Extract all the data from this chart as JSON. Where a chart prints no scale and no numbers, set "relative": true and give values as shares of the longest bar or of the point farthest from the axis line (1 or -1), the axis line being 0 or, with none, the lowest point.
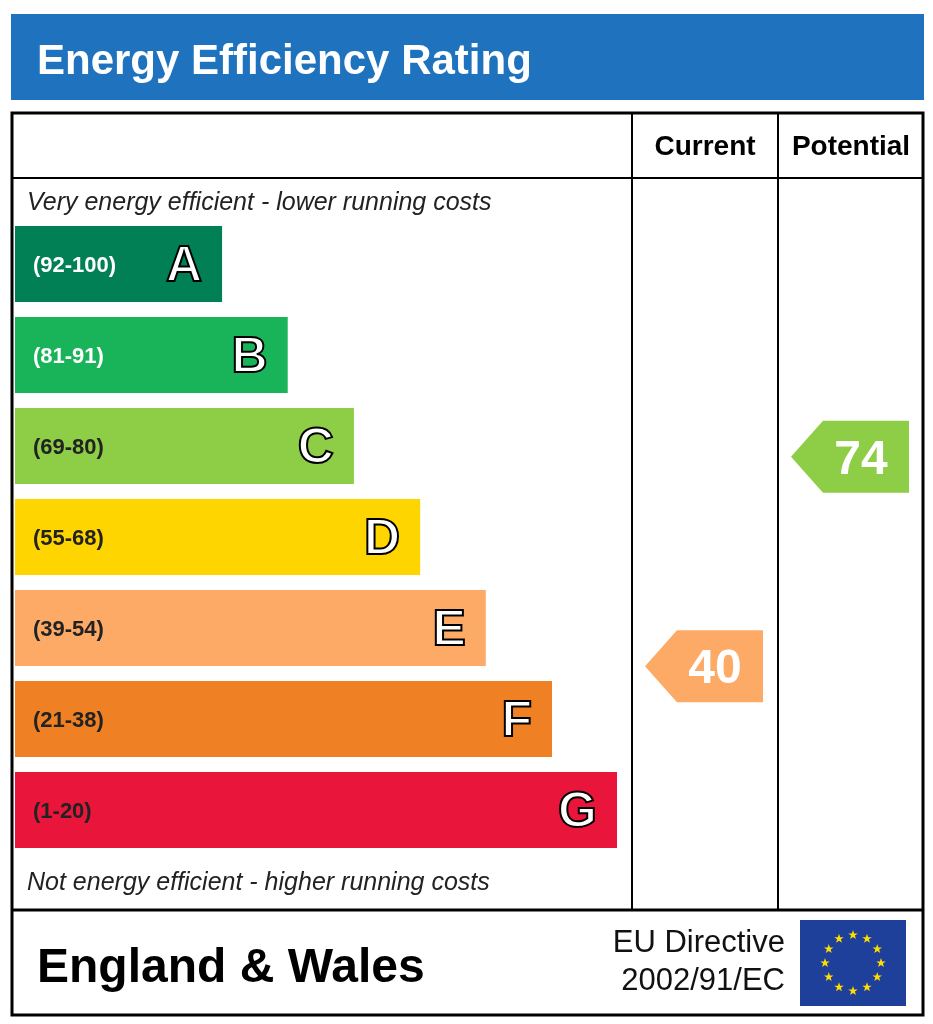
{
  "chart_data": {
    "type": "bar",
    "orientation": "horizontal",
    "relative": true,
    "title": "Energy Efficiency Rating",
    "categories": [
      "A",
      "B",
      "C",
      "D",
      "E",
      "F",
      "G"
    ],
    "values": [
      0.344,
      0.453,
      0.563,
      0.673,
      0.782,
      0.892,
      1
    ],
    "colors": [
      "#008054",
      "#19b459",
      "#8dce46",
      "#ffd500",
      "#fcaa65",
      "#ef8023",
      "#e9153b"
    ],
    "annotations": [
      "Current",
      "Potential",
      "Very energy efficient - lower running costs",
      "Not energy efficient - higher running costs",
      "England & Wales",
      "EU Directive 2002/91/EC",
      "(92-100)",
      "(81-91)",
      "(69-80)",
      "(55-68)",
      "(39-54)",
      "(21-38)",
      "(1-20)",
      "40",
      "74"
    ]
  }
}
